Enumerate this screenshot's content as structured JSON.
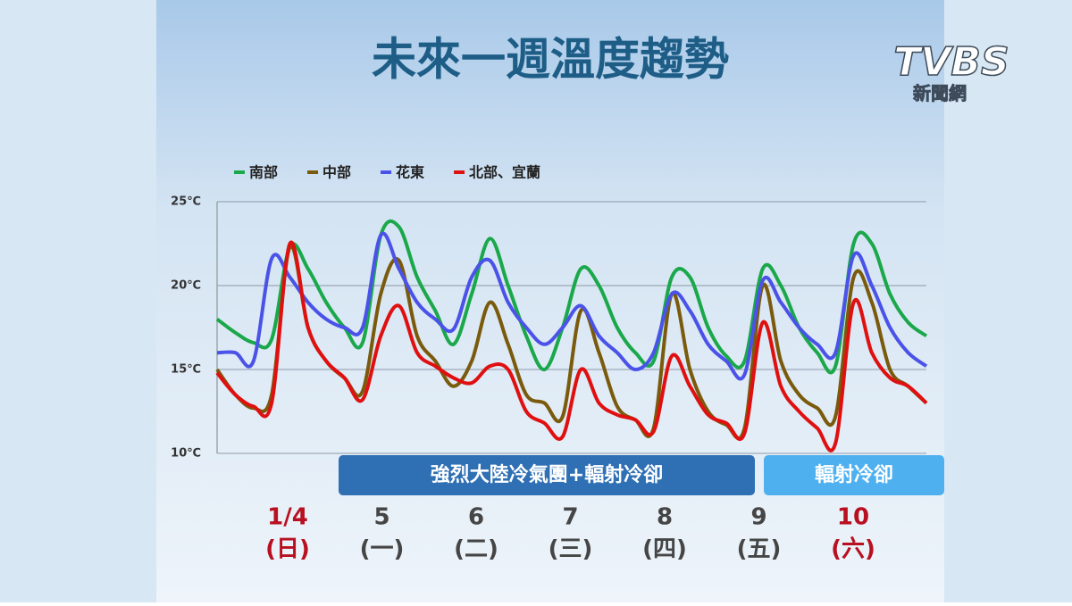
{
  "brand": {
    "logo": "TVBS",
    "subtitle": "新聞網"
  },
  "chart_data": {
    "type": "line",
    "title": "未來一週溫度趨勢",
    "ylim": [
      10,
      25
    ],
    "yticks": [
      {
        "value": 10,
        "label": "10℃"
      },
      {
        "value": 15,
        "label": "15℃"
      },
      {
        "value": 20,
        "label": "20℃"
      },
      {
        "value": 25,
        "label": "25℃"
      }
    ],
    "grid": true,
    "legend": "top-left",
    "series": [
      {
        "name": "南部",
        "color": "#1aa84a",
        "values": [
          18,
          17.2,
          16.6,
          16.8,
          22.3,
          21,
          19,
          17.5,
          16.6,
          23,
          23.5,
          20.5,
          18.5,
          16.5,
          19.5,
          22.8,
          20,
          17,
          15,
          17.5,
          21,
          20,
          17.5,
          16,
          15.5,
          20.5,
          20.5,
          17.5,
          15.8,
          15.5,
          21,
          20,
          17.5,
          16,
          15.2,
          22.5,
          22.5,
          19.5,
          17.8,
          17
        ]
      },
      {
        "name": "中部",
        "color": "#7a5a0c",
        "values": [
          15,
          13.5,
          12.7,
          13.5,
          22.3,
          17.5,
          15.5,
          14.5,
          13.7,
          19.5,
          21.5,
          17,
          15.5,
          14,
          15.5,
          19,
          16.5,
          13.5,
          13,
          12.2,
          18.5,
          16,
          12.8,
          12,
          11.5,
          19.5,
          15,
          12.5,
          11.7,
          11.5,
          20,
          15.5,
          13.5,
          12.7,
          12.2,
          20.5,
          19,
          15,
          14,
          13
        ]
      },
      {
        "name": "花東",
        "color": "#4a52e8",
        "values": [
          16,
          16,
          15.5,
          21.6,
          20.5,
          19,
          18,
          17.5,
          17.5,
          23,
          21,
          19,
          18,
          17.4,
          20.5,
          21.5,
          19,
          17.5,
          16.5,
          17.5,
          18.8,
          17,
          16,
          15,
          16,
          19.5,
          18.5,
          16.5,
          15.5,
          14.7,
          20.3,
          19,
          17.5,
          16.5,
          16,
          21.8,
          20,
          17.5,
          16,
          15.2
        ]
      },
      {
        "name": "北部、宜蘭",
        "color": "#e01010",
        "values": [
          14.8,
          13.5,
          12.8,
          13,
          22.5,
          17.5,
          15.5,
          14.5,
          13.2,
          17,
          18.8,
          16,
          15.2,
          14.5,
          14.2,
          15.2,
          15,
          12.5,
          11.8,
          11,
          15,
          13,
          12.3,
          12,
          11.3,
          15.8,
          14,
          12.3,
          11.8,
          11.2,
          17.8,
          14,
          12.5,
          11.5,
          10.6,
          19,
          16,
          14.5,
          14,
          13
        ]
      }
    ],
    "annotations": [
      {
        "text": "強烈大陸冷氣團+輻射冷卻",
        "color": "#2f6fb3"
      },
      {
        "text": "輻射冷卻",
        "color": "#4fb0ef"
      }
    ],
    "days": [
      {
        "date": "1/4",
        "weekday": "(日)",
        "color": "#b81020"
      },
      {
        "date": "5",
        "weekday": "(一)",
        "color": "#454545"
      },
      {
        "date": "6",
        "weekday": "(二)",
        "color": "#454545"
      },
      {
        "date": "7",
        "weekday": "(三)",
        "color": "#454545"
      },
      {
        "date": "8",
        "weekday": "(四)",
        "color": "#454545"
      },
      {
        "date": "9",
        "weekday": "(五)",
        "color": "#454545"
      },
      {
        "date": "10",
        "weekday": "(六)",
        "color": "#b81020"
      }
    ]
  }
}
